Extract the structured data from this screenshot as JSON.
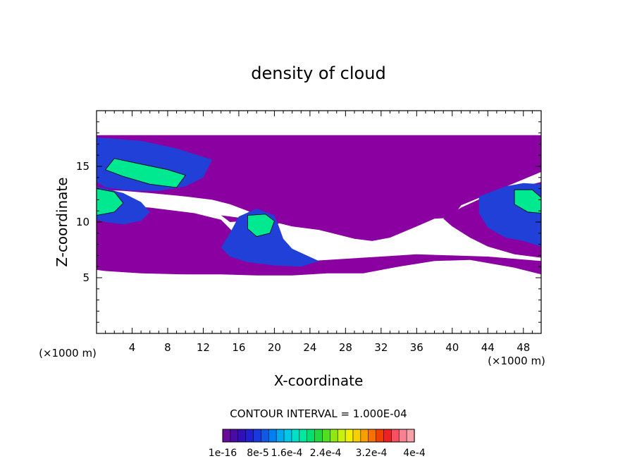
{
  "chart_data": {
    "type": "heatmap",
    "title": "density of cloud",
    "xlabel": "X-coordinate",
    "ylabel": "Z-coordinate",
    "x_unit": "(×1000 m)",
    "y_unit": "(×1000 m)",
    "xlim": [
      0,
      50
    ],
    "ylim": [
      0,
      20
    ],
    "x_ticks": [
      4,
      8,
      12,
      16,
      20,
      24,
      28,
      32,
      36,
      40,
      44,
      48
    ],
    "y_ticks": [
      5,
      10,
      15
    ],
    "contour_interval_label": "CONTOUR INTERVAL = 1.000E-04",
    "colorbar": {
      "tick_labels": [
        "1e-16",
        "8e-5",
        "1.6e-4",
        "2.4e-4",
        "3.2e-4",
        "4e-4"
      ],
      "colors": [
        "#6a0a9a",
        "#4a0aa8",
        "#3010b8",
        "#2020d0",
        "#1838e0",
        "#1058e8",
        "#0080f0",
        "#00a8f0",
        "#00c8e8",
        "#00e0c8",
        "#00e8a0",
        "#00e070",
        "#20d840",
        "#50e020",
        "#90e810",
        "#c8f010",
        "#f0f000",
        "#f8d000",
        "#f8a000",
        "#f87000",
        "#f04000",
        "#f02020",
        "#f85060",
        "#f88090",
        "#f8a0a8"
      ]
    },
    "cloud_layers": [
      {
        "level": "low",
        "color": "#8a00a0",
        "region": [
          [
            0,
            17.8
          ],
          [
            50,
            17.8
          ],
          [
            50,
            14.5
          ],
          [
            47,
            13.5
          ],
          [
            44,
            12.5
          ],
          [
            41,
            11.5
          ],
          [
            40,
            10.4
          ],
          [
            38,
            10.3
          ],
          [
            36,
            9.6
          ],
          [
            33,
            8.6
          ],
          [
            31,
            8.3
          ],
          [
            29,
            8.5
          ],
          [
            27,
            8.9
          ],
          [
            25,
            9.3
          ],
          [
            22,
            9.6
          ],
          [
            20,
            10.0
          ],
          [
            17,
            11.0
          ],
          [
            15,
            11.6
          ],
          [
            13,
            12.0
          ],
          [
            10,
            12.3
          ],
          [
            6,
            12.6
          ],
          [
            3,
            12.8
          ],
          [
            0,
            12.9
          ]
        ]
      },
      {
        "level": "low",
        "color": "#8a00a0",
        "region": [
          [
            0,
            11.6
          ],
          [
            6,
            11.3
          ],
          [
            11,
            10.8
          ],
          [
            14,
            10.2
          ],
          [
            16,
            8.6
          ],
          [
            18,
            7.2
          ],
          [
            20,
            6.6
          ],
          [
            24,
            6.5
          ],
          [
            28,
            6.7
          ],
          [
            32,
            6.9
          ],
          [
            36,
            7.1
          ],
          [
            40,
            7.0
          ],
          [
            44,
            6.9
          ],
          [
            47,
            6.7
          ],
          [
            50,
            6.5
          ],
          [
            50,
            5.3
          ],
          [
            47,
            5.9
          ],
          [
            42,
            6.6
          ],
          [
            38,
            6.5
          ],
          [
            34,
            6.0
          ],
          [
            30,
            5.4
          ],
          [
            26,
            5.4
          ],
          [
            22,
            5.2
          ],
          [
            18,
            5.2
          ],
          [
            14,
            5.3
          ],
          [
            10,
            5.3
          ],
          [
            5,
            5.4
          ],
          [
            1,
            5.6
          ],
          [
            0,
            5.7
          ]
        ]
      },
      {
        "level": "low",
        "color": "#8a00a0",
        "region": [
          [
            41,
            11.3
          ],
          [
            44,
            12.4
          ],
          [
            47,
            13.0
          ],
          [
            50,
            13.6
          ],
          [
            50,
            6.8
          ],
          [
            47,
            7.1
          ],
          [
            44,
            7.8
          ],
          [
            42,
            8.6
          ],
          [
            40,
            9.6
          ],
          [
            39,
            10.3
          ]
        ]
      },
      {
        "level": "low",
        "color": "#8a00a0",
        "region": [
          [
            14,
            10.6
          ],
          [
            16,
            10.4
          ],
          [
            18,
            11.3
          ],
          [
            20,
            11.0
          ],
          [
            21,
            10.3
          ],
          [
            20,
            9.5
          ],
          [
            19,
            9.6
          ],
          [
            17,
            10.1
          ],
          [
            15,
            10.0
          ]
        ]
      },
      {
        "level": "medium",
        "color": "#2040d8",
        "region": [
          [
            0,
            17.6
          ],
          [
            5,
            17.3
          ],
          [
            9,
            16.6
          ],
          [
            13,
            15.6
          ],
          [
            12,
            14.0
          ],
          [
            10,
            13.2
          ],
          [
            7,
            12.8
          ],
          [
            4,
            12.8
          ],
          [
            1,
            13.1
          ],
          [
            0,
            13.6
          ]
        ]
      },
      {
        "level": "medium",
        "color": "#2040d8",
        "region": [
          [
            0,
            13.2
          ],
          [
            3,
            12.6
          ],
          [
            5,
            11.8
          ],
          [
            6,
            10.9
          ],
          [
            5,
            10.1
          ],
          [
            3,
            9.8
          ],
          [
            1,
            10.0
          ],
          [
            0,
            10.2
          ]
        ]
      },
      {
        "level": "medium",
        "color": "#2040d8",
        "region": [
          [
            14,
            7.7
          ],
          [
            15,
            9.0
          ],
          [
            16,
            10.5
          ],
          [
            18,
            11.2
          ],
          [
            20,
            10.6
          ],
          [
            20.5,
            9.6
          ],
          [
            21,
            8.5
          ],
          [
            22,
            7.6
          ],
          [
            25,
            6.5
          ],
          [
            23,
            6.0
          ],
          [
            20,
            6.1
          ],
          [
            17,
            6.4
          ],
          [
            15,
            6.9
          ]
        ]
      },
      {
        "level": "medium",
        "color": "#2040d8",
        "region": [
          [
            43,
            12.3
          ],
          [
            46,
            13.2
          ],
          [
            48,
            13.5
          ],
          [
            50,
            13.4
          ],
          [
            50,
            7.8
          ],
          [
            48,
            8.3
          ],
          [
            46,
            8.6
          ],
          [
            44,
            9.5
          ],
          [
            43,
            10.8
          ]
        ]
      },
      {
        "level": "high",
        "color": "#00e890",
        "region": [
          [
            2,
            15.7
          ],
          [
            5,
            15.2
          ],
          [
            8,
            14.7
          ],
          [
            10,
            14.2
          ],
          [
            9,
            13.1
          ],
          [
            6,
            13.4
          ],
          [
            3,
            14.1
          ],
          [
            1,
            14.7
          ]
        ]
      },
      {
        "level": "high",
        "color": "#00e890",
        "region": [
          [
            0,
            13.0
          ],
          [
            2,
            12.7
          ],
          [
            3,
            11.7
          ],
          [
            2,
            10.9
          ],
          [
            0,
            10.6
          ]
        ]
      },
      {
        "level": "high",
        "color": "#00e890",
        "region": [
          [
            17,
            10.6
          ],
          [
            19,
            10.7
          ],
          [
            20,
            10.1
          ],
          [
            19.5,
            9.0
          ],
          [
            18,
            8.7
          ],
          [
            17,
            9.4
          ]
        ]
      },
      {
        "level": "high",
        "color": "#00e890",
        "region": [
          [
            47,
            12.9
          ],
          [
            49,
            12.9
          ],
          [
            50,
            12.2
          ],
          [
            50,
            10.8
          ],
          [
            48.5,
            10.9
          ],
          [
            47,
            11.6
          ]
        ]
      }
    ]
  }
}
